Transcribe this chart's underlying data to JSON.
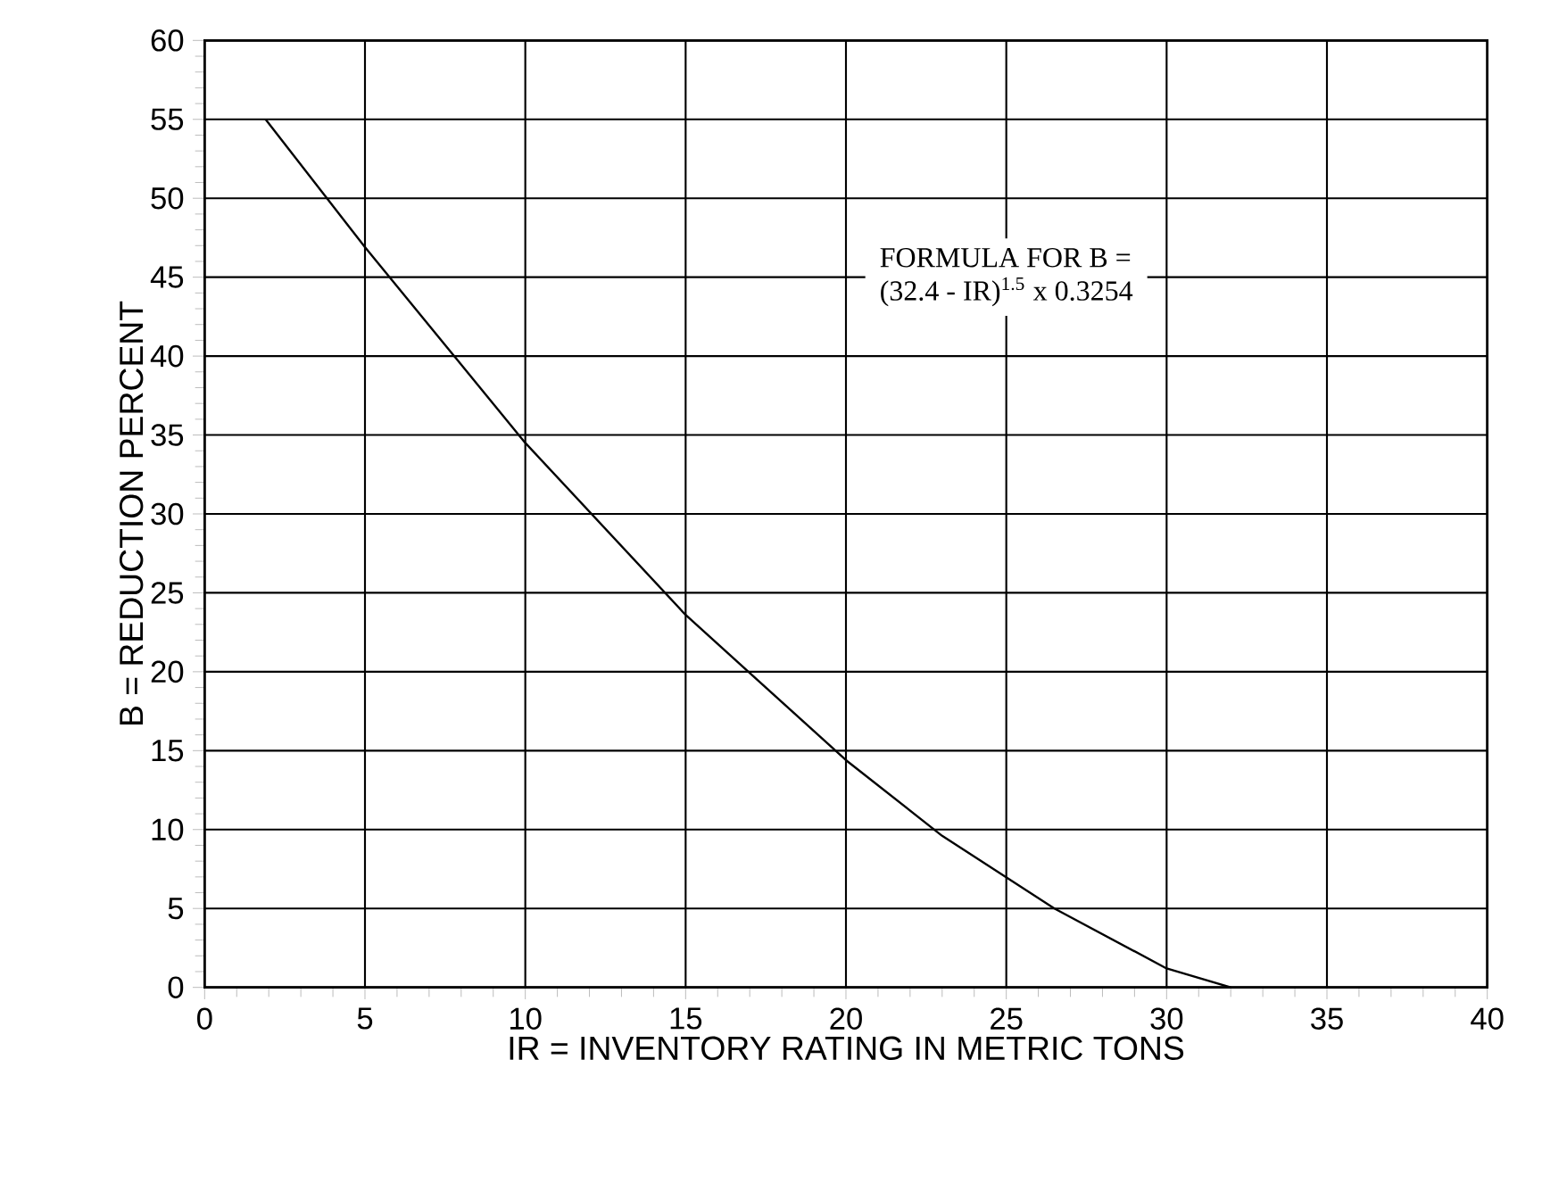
{
  "chart_data": {
    "type": "line",
    "xlabel": "IR = INVENTORY RATING IN METRIC TONS",
    "ylabel": "B = REDUCTION PERCENT",
    "annotations": [
      "FORMULA FOR B =",
      "(32.4 - IR)$^{1.5}$ x 0.3254"
    ],
    "x": [
      1.9,
      5,
      10,
      15,
      20,
      23,
      26.5,
      30,
      32
    ],
    "series": [
      {
        "color": "#000000",
        "values": [
          55,
          46.9,
          34.5,
          23.6,
          14.4,
          9.6,
          5,
          1.2,
          0
        ]
      }
    ],
    "xlim": [
      0,
      40
    ],
    "xticks": [
      0,
      5,
      10,
      15,
      20,
      25,
      30,
      35,
      40
    ],
    "ylim": [
      0,
      60
    ],
    "yticks": [
      0,
      5,
      10,
      15,
      20,
      25,
      30,
      35,
      40,
      45,
      50,
      55,
      60
    ],
    "grid": true,
    "marker": "none",
    "line_style": "solid"
  }
}
